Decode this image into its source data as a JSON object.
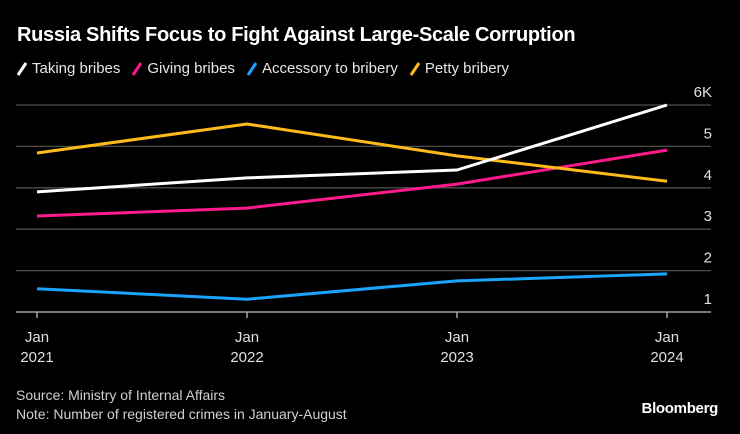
{
  "chart_data": {
    "type": "line",
    "title": "Russia Shifts Focus to Fight Against Large-Scale Corruption",
    "xlabel": "",
    "ylabel": "",
    "x": [
      "Jan 2021",
      "Jan 2022",
      "Jan 2023",
      "Jan 2024"
    ],
    "x_ticks": [
      {
        "month": "Jan",
        "year": "2021"
      },
      {
        "month": "Jan",
        "year": "2022"
      },
      {
        "month": "Jan",
        "year": "2023"
      },
      {
        "month": "Jan",
        "year": "2024"
      }
    ],
    "y_ticks": [
      {
        "value": 1,
        "label": "1"
      },
      {
        "value": 2,
        "label": "2"
      },
      {
        "value": 3,
        "label": "3"
      },
      {
        "value": 4,
        "label": "4"
      },
      {
        "value": 5,
        "label": "5"
      },
      {
        "value": 6,
        "label": "6K"
      }
    ],
    "ylim": [
      1,
      6
    ],
    "y_unit": "thousands",
    "grid": true,
    "legend_position": "top-left",
    "series": [
      {
        "name": "Taking bribes",
        "color": "#ffffff",
        "values": [
          3.9,
          4.24,
          4.43,
          6.0
        ]
      },
      {
        "name": "Giving bribes",
        "color": "#ff1a8c",
        "values": [
          3.32,
          3.51,
          4.09,
          4.91
        ]
      },
      {
        "name": "Accessory to bribery",
        "color": "#1aa3ff",
        "values": [
          1.56,
          1.31,
          1.75,
          1.92
        ]
      },
      {
        "name": "Petty bribery",
        "color": "#ffbb1a",
        "values": [
          4.84,
          5.54,
          4.77,
          4.16
        ]
      }
    ]
  },
  "footer": {
    "source": "Source: Ministry of Internal Affairs",
    "note": "Note: Number of registered crimes in January-August"
  },
  "brand": "Bloomberg"
}
